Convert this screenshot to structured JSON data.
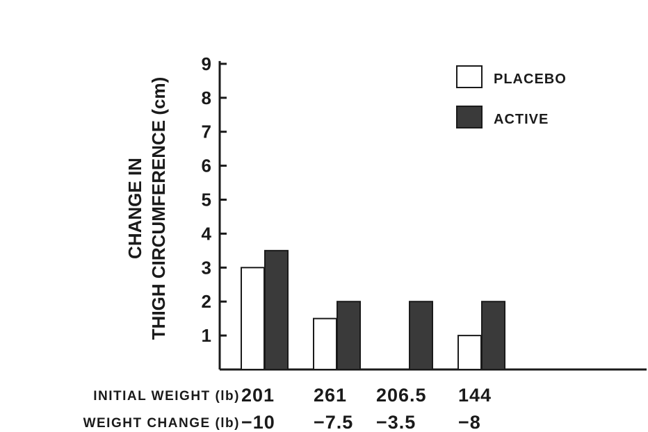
{
  "chart_data": {
    "type": "bar",
    "ylabel_lines": [
      "CHANGE IN",
      "THIGH CIRCUMFERENCE (cm)"
    ],
    "ylim": [
      0,
      9
    ],
    "yticks": [
      "1",
      "2",
      "3",
      "4",
      "5",
      "6",
      "7",
      "8",
      "9"
    ],
    "categories": [
      "201",
      "261",
      "206.5",
      "144"
    ],
    "series": [
      {
        "name": "PLACEBO",
        "color": "#ffffff",
        "values": [
          3.0,
          1.5,
          0,
          1.0
        ]
      },
      {
        "name": "ACTIVE",
        "color": "#3a3a3a",
        "values": [
          3.5,
          2.0,
          2.0,
          2.0
        ]
      }
    ],
    "legend_position": "top-right",
    "x_rows": [
      {
        "label": "INITIAL WEIGHT (lb)",
        "values": [
          "201",
          "261",
          "206.5",
          "144"
        ]
      },
      {
        "label": "WEIGHT CHANGE (lb)",
        "values": [
          "−10",
          "−7.5",
          "−3.5",
          "−8"
        ]
      }
    ]
  }
}
